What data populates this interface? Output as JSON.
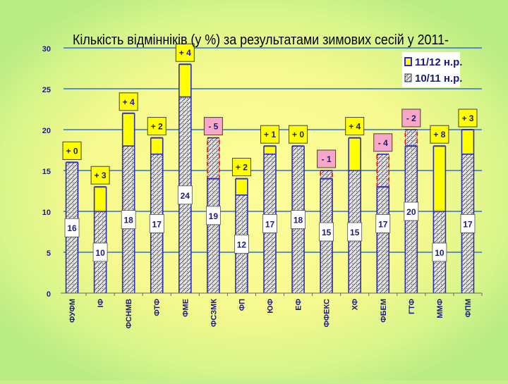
{
  "chart_data": {
    "type": "bar",
    "title": "Кількість відмінніків (у %) за результатами зимових сесій у 2011-",
    "ylim": [
      0,
      30
    ],
    "yticks": [
      "0",
      "5",
      "10",
      "15",
      "20",
      "25",
      "30"
    ],
    "grid": true,
    "legend_position": "top-right",
    "categories": [
      "ФУФМ",
      "ІФ",
      "ФСНМВ",
      "ФТФ",
      "ФМЕ",
      "ФСЗМК",
      "ФП",
      "ЮФ",
      "ЕФ",
      "ФФЕКС",
      "ХФ",
      "ФБЕМ",
      "ГТФ",
      "ММФ",
      "ФПМ"
    ],
    "series": [
      {
        "name": "10/11 н.р.",
        "values": [
          16,
          10,
          18,
          17,
          24,
          19,
          12,
          17,
          18,
          15,
          15,
          17,
          20,
          10,
          17
        ]
      },
      {
        "name": "11/12 н.р.",
        "values": [
          16,
          13,
          22,
          19,
          28,
          14,
          14,
          18,
          18,
          14,
          19,
          13,
          18,
          18,
          20
        ]
      }
    ],
    "change_labels": [
      "+ 0",
      "+ 3",
      "+ 4",
      "+ 2",
      "+ 4",
      "- 5",
      "+ 2",
      "+ 1",
      "+ 0",
      "- 1",
      "+ 4",
      "- 4",
      "- 2",
      "+ 8",
      "+ 3"
    ],
    "base_labels": [
      "16",
      "10",
      "18",
      "17",
      "24",
      "19",
      "12",
      "17",
      "18",
      "15",
      "15",
      "17",
      "20",
      "10",
      "17"
    ]
  },
  "colors": {
    "increase": "#ffff00",
    "decrease": "#f7a8c8",
    "line": "#2d2db8",
    "dash": "#e31010",
    "grid": "#2e6fd8",
    "axis_text": "#1a1a80",
    "hatch_bg": "#e4e4e4",
    "hatch_dot": "#5a5a5a"
  }
}
